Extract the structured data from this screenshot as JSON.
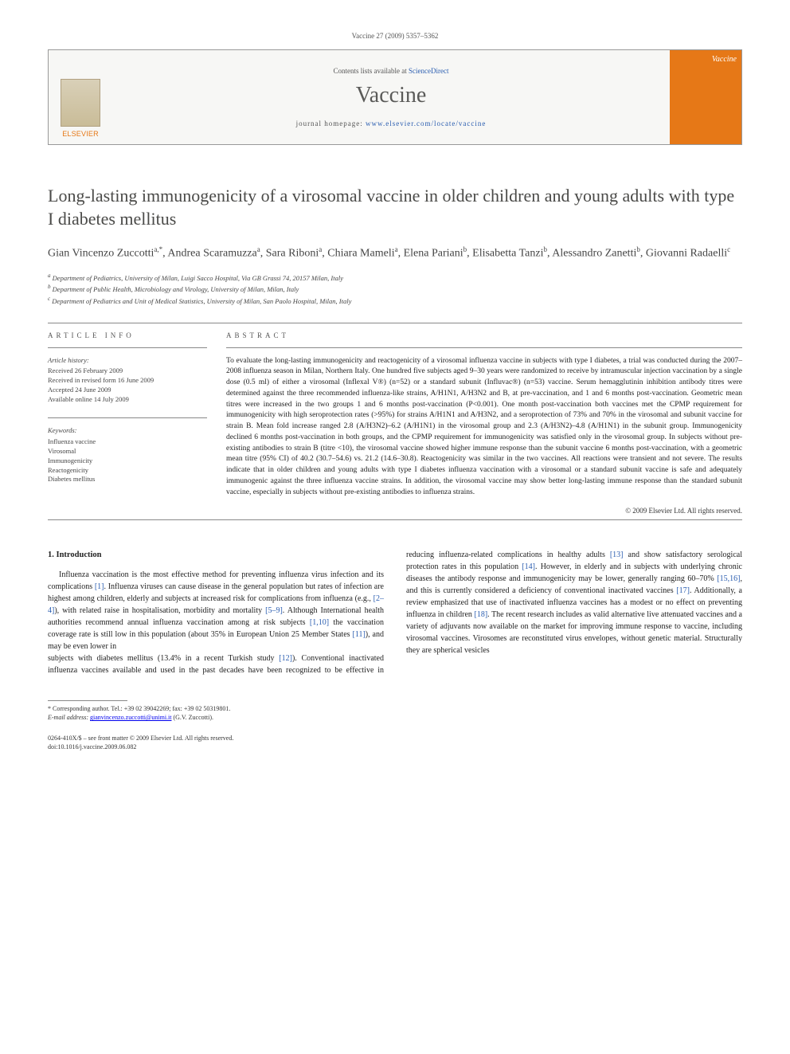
{
  "header": {
    "citation": "Vaccine 27 (2009) 5357–5362"
  },
  "banner": {
    "publisher_label": "ELSEVIER",
    "contents_prefix": "Contents lists available at ",
    "contents_link": "ScienceDirect",
    "journal_name": "Vaccine",
    "homepage_prefix": "journal homepage: ",
    "homepage_url": "www.elsevier.com/locate/vaccine",
    "cover_label": "Vaccine"
  },
  "article": {
    "title": "Long-lasting immunogenicity of a virosomal vaccine in older children and young adults with type I diabetes mellitus",
    "authors_html": "Gian Vincenzo Zuccotti<sup>a,*</sup>, Andrea Scaramuzza<sup>a</sup>, Sara Riboni<sup>a</sup>, Chiara Mameli<sup>a</sup>, Elena Pariani<sup>b</sup>, Elisabetta Tanzi<sup>b</sup>, Alessandro Zanetti<sup>b</sup>, Giovanni Radaelli<sup>c</sup>",
    "affiliations": [
      "a Department of Pediatrics, University of Milan, Luigi Sacco Hospital, Via GB Grassi 74, 20157 Milan, Italy",
      "b Department of Public Health, Microbiology and Virology, University of Milan, Milan, Italy",
      "c Department of Pediatrics and Unit of Medical Statistics, University of Milan, San Paolo Hospital, Milan, Italy"
    ]
  },
  "info": {
    "section_label": "ARTICLE INFO",
    "history_label": "Article history:",
    "history": [
      "Received 26 February 2009",
      "Received in revised form 16 June 2009",
      "Accepted 24 June 2009",
      "Available online 14 July 2009"
    ],
    "keywords_label": "Keywords:",
    "keywords": [
      "Influenza vaccine",
      "Virosomal",
      "Immunogenicity",
      "Reactogenicity",
      "Diabetes mellitus"
    ]
  },
  "abstract": {
    "section_label": "ABSTRACT",
    "text": "To evaluate the long-lasting immunogenicity and reactogenicity of a virosomal influenza vaccine in subjects with type I diabetes, a trial was conducted during the 2007–2008 influenza season in Milan, Northern Italy. One hundred five subjects aged 9–30 years were randomized to receive by intramuscular injection vaccination by a single dose (0.5 ml) of either a virosomal (Inflexal V®) (n=52) or a standard subunit (Influvac®) (n=53) vaccine. Serum hemagglutinin inhibition antibody titres were determined against the three recommended influenza-like strains, A/H1N1, A/H3N2 and B, at pre-vaccination, and 1 and 6 months post-vaccination. Geometric mean titres were increased in the two groups 1 and 6 months post-vaccination (P<0.001). One month post-vaccination both vaccines met the CPMP requirement for immunogenicity with high seroprotection rates (>95%) for strains A/H1N1 and A/H3N2, and a seroprotection of 73% and 70% in the virosomal and subunit vaccine for strain B. Mean fold increase ranged 2.8 (A/H3N2)–6.2 (A/H1N1) in the virosomal group and 2.3 (A/H3N2)–4.8 (A/H1N1) in the subunit group. Immunogenicity declined 6 months post-vaccination in both groups, and the CPMP requirement for immunogenicity was satisfied only in the virosomal group. In subjects without pre-existing antibodies to strain B (titre <10), the virosomal vaccine showed higher immune response than the subunit vaccine 6 months post-vaccination, with a geometric mean titre (95% CI) of 40.2 (30.7–54.6) vs. 21.2 (14.6–30.8). Reactogenicity was similar in the two vaccines. All reactions were transient and not severe. The results indicate that in older children and young adults with type I diabetes influenza vaccination with a virosomal or a standard subunit vaccine is safe and adequately immunogenic against the three influenza vaccine strains. In addition, the virosomal vaccine may show better long-lasting immune response than the standard subunit vaccine, especially in subjects without pre-existing antibodies to influenza strains.",
    "copyright": "© 2009 Elsevier Ltd. All rights reserved."
  },
  "body": {
    "heading": "1. Introduction",
    "col1": "Influenza vaccination is the most effective method for preventing influenza virus infection and its complications [1]. Influenza viruses can cause disease in the general population but rates of infection are highest among children, elderly and subjects at increased risk for complications from influenza (e.g., [2–4]), with related raise in hospitalisation, morbidity and mortality [5–9]. Although International health authorities recommend annual influenza vaccination among at risk subjects [1,10] the vaccination coverage rate is still low in this population (about 35% in European Union 25 Member States [11]), and may be even lower in",
    "col2": "subjects with diabetes mellitus (13.4% in a recent Turkish study [12]). Conventional inactivated influenza vaccines available and used in the past decades have been recognized to be effective in reducing influenza-related complications in healthy adults [13] and show satisfactory serological protection rates in this population [14]. However, in elderly and in subjects with underlying chronic diseases the antibody response and immunogenicity may be lower, generally ranging 60–70% [15,16], and this is currently considered a deficiency of conventional inactivated vaccines [17]. Additionally, a review emphasized that use of inactivated influenza vaccines has a modest or no effect on preventing influenza in children [18]. The recent research includes as valid alternative live attenuated vaccines and a variety of adjuvants now available on the market for improving immune response to vaccine, including virosomal vaccines. Virosomes are reconstituted virus envelopes, without genetic material. Structurally they are spherical vesicles",
    "refs": [
      "[1]",
      "[2–4]",
      "[5–9]",
      "[1,10]",
      "[11]",
      "[12]",
      "[13]",
      "[14]",
      "[15,16]",
      "[17]",
      "[18]"
    ]
  },
  "footnotes": {
    "corresponding": "* Corresponding author. Tel.: +39 02 39042269; fax: +39 02 50319801.",
    "email_label": "E-mail address:",
    "email": "gianvincenzo.zuccotti@unimi.it",
    "email_suffix": "(G.V. Zuccotti)."
  },
  "footer": {
    "line1": "0264-410X/$ – see front matter © 2009 Elsevier Ltd. All rights reserved.",
    "line2": "doi:10.1016/j.vaccine.2009.06.082"
  },
  "colors": {
    "link": "#2a5db0",
    "accent": "#e67817",
    "text": "#222222",
    "muted": "#555555",
    "rule": "#888888"
  },
  "typography": {
    "title_fontsize_pt": 17,
    "body_fontsize_pt": 8,
    "abstract_fontsize_pt": 7.5,
    "font_family": "Georgia, serif"
  }
}
